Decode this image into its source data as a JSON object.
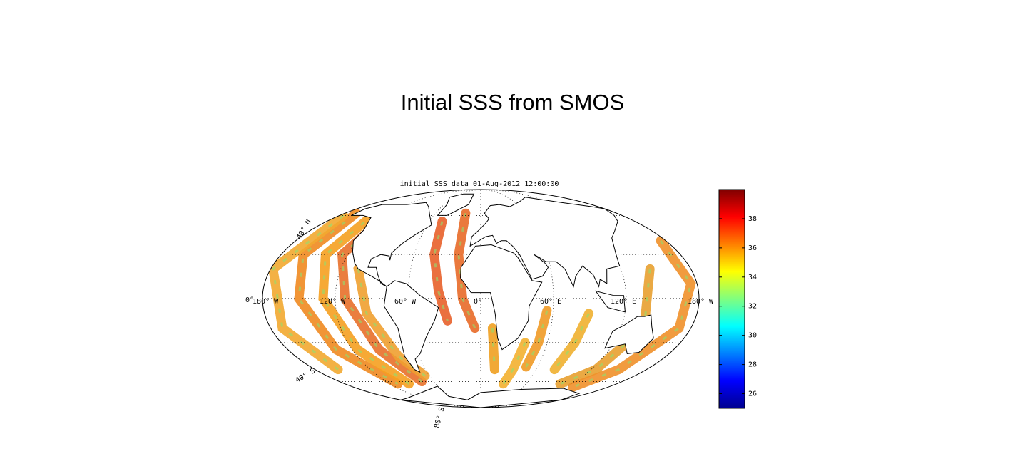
{
  "title": "Initial SSS from SMOS",
  "map": {
    "subtitle": "initial SSS data 01-Aug-2012 12:00:00",
    "lon_labels": [
      "180° W",
      "120° W",
      "60° W",
      "0°",
      "60° E",
      "120° E",
      "180° W"
    ],
    "lat_labels": [
      "40° N",
      "0°",
      "40° S",
      "80° S"
    ]
  },
  "colorbar": {
    "clim": [
      25,
      40
    ],
    "ticks": [
      26,
      28,
      30,
      32,
      34,
      36,
      38
    ]
  }
}
